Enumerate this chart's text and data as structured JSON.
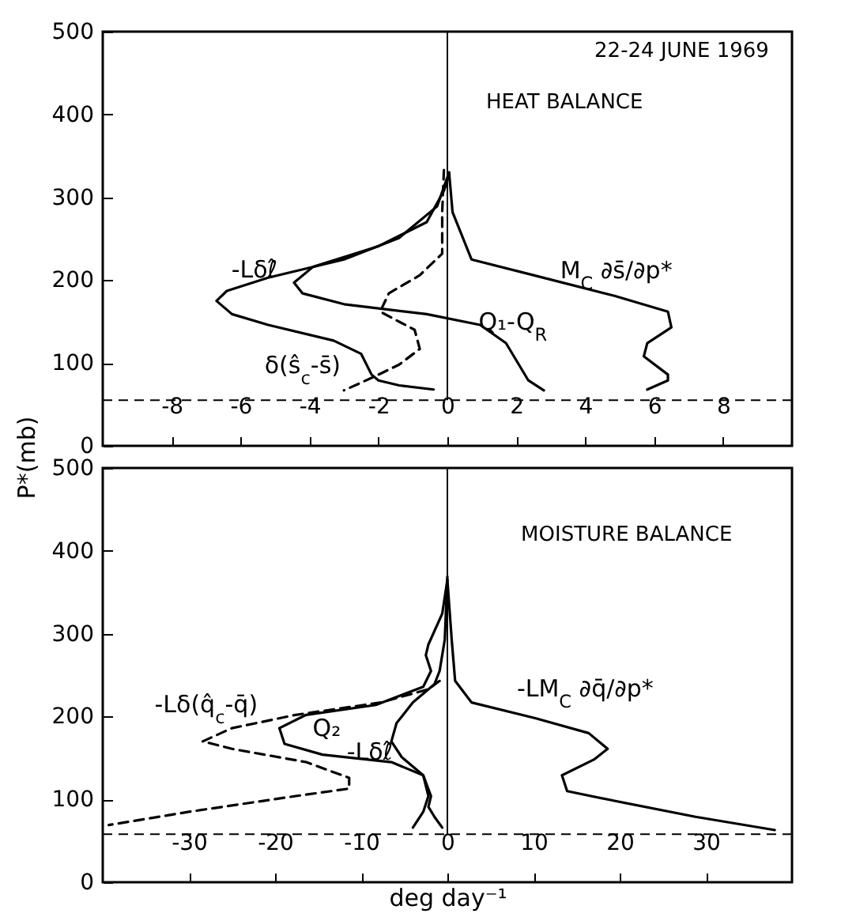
{
  "chart_data": [
    {
      "type": "line",
      "title": "HEAT BALANCE",
      "ylabel": "P*(mb)",
      "annotations": [
        "22-24 JUNE 1969"
      ],
      "xlim": [
        -10,
        10
      ],
      "xticks": [
        -8,
        -6,
        -4,
        -2,
        0,
        2,
        4,
        6,
        8
      ],
      "ylim": [
        0,
        500
      ],
      "yticks": [
        0,
        100,
        200,
        300,
        400,
        500
      ],
      "grid": false,
      "legend": false,
      "marker": "none",
      "ref_lines": [
        {
          "axis": "y",
          "value": 55,
          "line_style": "dashed",
          "color": "#000000"
        },
        {
          "axis": "x",
          "value": 0,
          "color": "#000000"
        }
      ],
      "series": [
        {
          "name": "-Lδℓ̂",
          "color": "#000000",
          "line_style": "solid",
          "x": [
            0.05,
            -0.3,
            -1.4,
            -3.0,
            -5.2,
            -6.4,
            -6.7,
            -6.25,
            -5.2,
            -3.3,
            -2.5,
            -2.2,
            -2.0,
            -1.4,
            -0.4
          ],
          "values": [
            330,
            289,
            251,
            225,
            203,
            187,
            175,
            159,
            146,
            127,
            111,
            86,
            79,
            73,
            68
          ]
        },
        {
          "name": "Q₁-Q$_{R}$",
          "color": "#000000",
          "line_style": "solid",
          "x": [
            0.05,
            -0.1,
            -0.6,
            -2.0,
            -3.9,
            -4.45,
            -4.2,
            -3.0,
            -0.6,
            0.95,
            1.7,
            2.35,
            2.8
          ],
          "values": [
            327,
            308,
            270,
            241,
            216,
            197,
            184,
            171,
            159,
            146,
            124,
            79,
            67
          ]
        },
        {
          "name": "δ(ŝ$_{c}$-s̄)",
          "color": "#000000",
          "line_style": "dashed",
          "x": [
            -0.1,
            -0.15,
            -0.15,
            -0.8,
            -1.7,
            -1.95,
            -0.95,
            -0.8,
            -1.4,
            -2.2,
            -3.0
          ],
          "values": [
            333,
            282,
            232,
            206,
            184,
            162,
            140,
            117,
            98,
            82,
            67
          ]
        },
        {
          "name": "M$_{C}$ ∂s̄/∂p*",
          "color": "#000000",
          "line_style": "solid",
          "x": [
            0.05,
            0.15,
            0.7,
            2.5,
            4.85,
            6.4,
            6.5,
            5.8,
            5.7,
            6.4,
            6.4,
            5.8
          ],
          "values": [
            330,
            282,
            225,
            206,
            181,
            162,
            143,
            124,
            108,
            86,
            79,
            68
          ]
        }
      ]
    },
    {
      "type": "line",
      "title": "MOISTURE BALANCE",
      "xlabel": "deg day⁻¹",
      "xlim": [
        -40,
        40
      ],
      "xticks": [
        -30,
        -20,
        -10,
        0,
        10,
        20,
        30
      ],
      "ylim": [
        0,
        500
      ],
      "yticks": [
        0,
        100,
        200,
        300,
        400,
        500
      ],
      "grid": false,
      "legend": false,
      "marker": "none",
      "ref_lines": [
        {
          "axis": "y",
          "value": 58,
          "line_style": "dashed",
          "color": "#000000"
        },
        {
          "axis": "x",
          "value": 0,
          "color": "#000000"
        }
      ],
      "series": [
        {
          "name": "-Lδℓ̂",
          "color": "#000000",
          "line_style": "solid",
          "x": [
            0,
            -0.3,
            -0.9,
            -1.5,
            -4.0,
            -5.9,
            -6.5,
            -5.3,
            -2.8,
            -1.9,
            -2.2,
            -1.5,
            -0.6
          ],
          "values": [
            369,
            293,
            255,
            239,
            217,
            192,
            170,
            151,
            129,
            104,
            91,
            79,
            66
          ]
        },
        {
          "name": "Q₂",
          "color": "#000000",
          "line_style": "solid",
          "x": [
            0,
            -0.6,
            -2.2,
            -2.5,
            -1.9,
            -2.8,
            -8.3,
            -16.4,
            -19.5,
            -18.9,
            -14.5,
            -6.5,
            -2.8,
            -2.2,
            -2.8,
            -4.0
          ],
          "values": [
            365,
            324,
            287,
            274,
            255,
            236,
            214,
            202,
            186,
            167,
            154,
            145,
            129,
            104,
            85,
            66
          ]
        },
        {
          "name": "-Lδ(q̂$_{c}$-q̄)",
          "color": "#000000",
          "line_style": "dashed",
          "x": [
            -0.9,
            -2.2,
            -7.7,
            -17.6,
            -25,
            -28.4,
            -25,
            -16.4,
            -11.4,
            -11.4,
            -17.6,
            -30,
            -39.3
          ],
          "values": [
            243,
            233,
            217,
            202,
            186,
            170,
            161,
            145,
            126,
            113,
            104,
            85,
            69
          ]
        },
        {
          "name": "-LM$_{C}$ ∂q̄/∂p*",
          "color": "#000000",
          "line_style": "solid",
          "x": [
            0,
            0.5,
            0.9,
            2.8,
            10.2,
            16.4,
            18.6,
            17,
            13.3,
            13.9,
            19.5,
            28.8,
            38
          ],
          "values": [
            365,
            293,
            243,
            217,
            198,
            180,
            161,
            148,
            129,
            110,
            98,
            79,
            63
          ]
        }
      ]
    }
  ]
}
